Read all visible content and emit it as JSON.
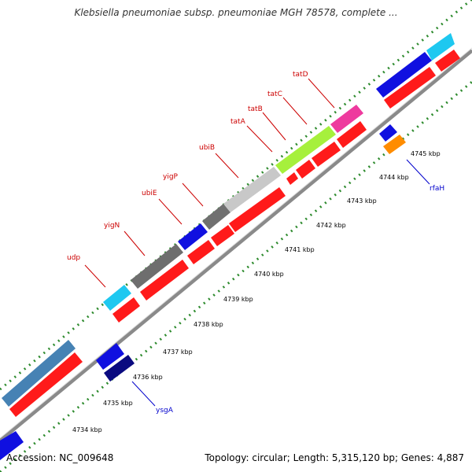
{
  "title": "Klebsiella pneumoniae subsp. pneumoniae MGH 78578, complete ...",
  "footer": {
    "accession": "Accession: NC_009648",
    "topology": "Topology: circular; Length: 5,315,120 bp; Genes: 4,887"
  },
  "colors": {
    "backbone": "#8a8a8a",
    "tick": "#2e8b2e",
    "gene_label_red": "#cc0000",
    "gene_label_blue": "#0000cc",
    "cds": "#ff1a1a"
  },
  "scale_ticks": [
    {
      "label": "4734 kbp"
    },
    {
      "label": "4735 kbp"
    },
    {
      "label": "4736 kbp"
    },
    {
      "label": "4737 kbp"
    },
    {
      "label": "4738 kbp"
    },
    {
      "label": "4739 kbp"
    },
    {
      "label": "4740 kbp"
    },
    {
      "label": "4741 kbp"
    },
    {
      "label": "4742 kbp"
    },
    {
      "label": "4743 kbp"
    },
    {
      "label": "4744 kbp"
    },
    {
      "label": "4745 kbp"
    }
  ],
  "gene_labels": [
    {
      "name": "udp"
    },
    {
      "name": "yigN"
    },
    {
      "name": "ubiE"
    },
    {
      "name": "yigP"
    },
    {
      "name": "ubiB"
    },
    {
      "name": "tatA"
    },
    {
      "name": "tatB"
    },
    {
      "name": "tatC"
    },
    {
      "name": "tatD"
    },
    {
      "name": "rfaH"
    },
    {
      "name": "ysgA"
    }
  ]
}
